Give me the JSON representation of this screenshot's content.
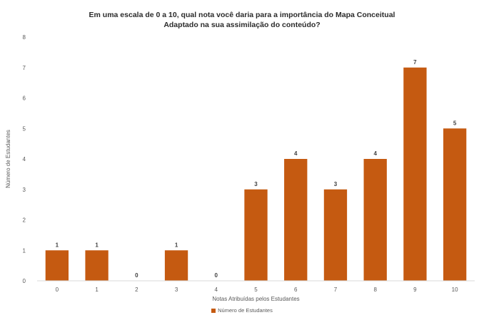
{
  "chart_data": {
    "type": "bar",
    "title_line1": "Em uma escala de 0 a 10, qual nota você daria para a importância do Mapa Conceitual",
    "title_line2": "Adaptado na sua assimilação do conteúdo?",
    "xlabel": "Notas Atribuídas pelos Estudantes",
    "ylabel": "Número de Estudantes",
    "categories": [
      "0",
      "1",
      "2",
      "3",
      "4",
      "5",
      "6",
      "7",
      "8",
      "9",
      "10"
    ],
    "series": [
      {
        "name": "Número de Estudantes",
        "values": [
          1,
          1,
          0,
          1,
          0,
          3,
          4,
          3,
          4,
          7,
          5
        ]
      }
    ],
    "ylim": [
      0,
      8
    ],
    "yticks": [
      "0",
      "1",
      "2",
      "3",
      "4",
      "5",
      "6",
      "7",
      "8"
    ],
    "grid": false,
    "legend": "bottom-center",
    "bar_color": "#C55A11"
  }
}
